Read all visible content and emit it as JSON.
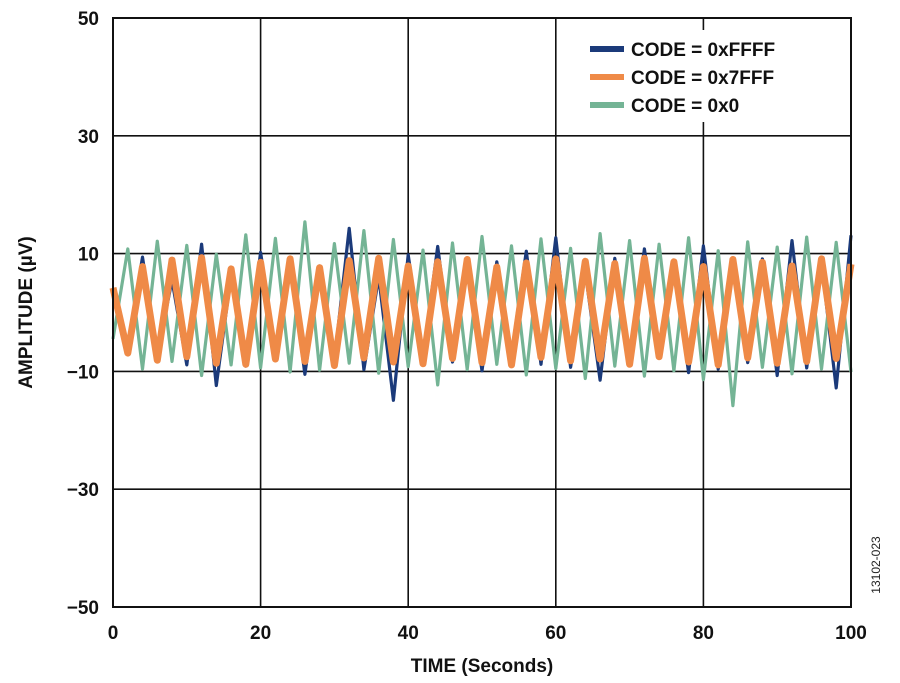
{
  "chart_data": {
    "type": "line",
    "title": "",
    "xlabel": "TIME (Seconds)",
    "ylabel": "AMPLITUDE (µV)",
    "xlim": [
      0,
      100
    ],
    "ylim": [
      -50,
      50
    ],
    "x_ticks": [
      "0",
      "20",
      "40",
      "60",
      "80",
      "100"
    ],
    "y_ticks": [
      "50",
      "30",
      "10",
      "−10",
      "−30",
      "−50"
    ],
    "grid": true,
    "legend_position": "top-right",
    "figure_id": "13102-023",
    "series": [
      {
        "name": "CODE = 0xFFFF",
        "color": "#1b3a7a",
        "x": [
          0,
          2,
          4,
          6,
          8,
          10,
          12,
          14,
          16,
          18,
          20,
          22,
          24,
          26,
          28,
          30,
          32,
          34,
          36,
          38,
          40,
          42,
          44,
          46,
          48,
          50,
          52,
          54,
          56,
          58,
          60,
          62,
          64,
          66,
          68,
          70,
          72,
          74,
          76,
          78,
          80,
          82,
          84,
          86,
          88,
          90,
          92,
          94,
          96,
          98,
          100
        ],
        "values": [
          3.1,
          -5.8,
          9.4,
          -7.2,
          5.5,
          -8.9,
          11.6,
          -12.4,
          6.3,
          -9.1,
          10.2,
          -6.8,
          8.7,
          -10.5,
          7.9,
          -8.2,
          14.3,
          -9.7,
          6.1,
          -14.9,
          9.8,
          -7.6,
          11.2,
          -8.4,
          7.3,
          -9.9,
          8.6,
          -7.1,
          10.4,
          -8.8,
          12.7,
          -9.3,
          6.9,
          -11.5,
          9.2,
          -8.1,
          10.8,
          -7.4,
          8.3,
          -10.2,
          11.3,
          -9.6,
          7.7,
          -8.5,
          9.1,
          -10.7,
          12.2,
          -9.4,
          8.4,
          -12.8,
          13.1
        ]
      },
      {
        "name": "CODE = 0x7FFF",
        "color": "#ef8a47",
        "x": [
          0,
          2,
          4,
          6,
          8,
          10,
          12,
          14,
          16,
          18,
          20,
          22,
          24,
          26,
          28,
          30,
          32,
          34,
          36,
          38,
          40,
          42,
          44,
          46,
          48,
          50,
          52,
          54,
          56,
          58,
          60,
          62,
          64,
          66,
          68,
          70,
          72,
          74,
          76,
          78,
          80,
          82,
          84,
          86,
          88,
          90,
          92,
          94,
          96,
          98,
          100
        ],
        "values": [
          4.2,
          -6.9,
          7.8,
          -8.1,
          8.9,
          -7.5,
          9.3,
          -8.6,
          7.4,
          -8.8,
          8.5,
          -7.9,
          9.1,
          -8.3,
          7.6,
          -9.0,
          8.8,
          -7.7,
          9.2,
          -8.4,
          7.9,
          -8.7,
          8.6,
          -7.8,
          9.0,
          -8.5,
          7.7,
          -8.9,
          8.4,
          -7.6,
          9.1,
          -8.2,
          8.7,
          -7.9,
          8.3,
          -8.8,
          9.2,
          -7.5,
          8.6,
          -8.4,
          7.8,
          -8.9,
          9.0,
          -7.7,
          8.5,
          -8.6,
          7.9,
          -8.3,
          9.1,
          -7.8,
          8.2
        ]
      },
      {
        "name": "CODE = 0x0",
        "color": "#74b495",
        "x": [
          0,
          2,
          4,
          6,
          8,
          10,
          12,
          14,
          16,
          18,
          20,
          22,
          24,
          26,
          28,
          30,
          32,
          34,
          36,
          38,
          40,
          42,
          44,
          46,
          48,
          50,
          52,
          54,
          56,
          58,
          60,
          62,
          64,
          66,
          68,
          70,
          72,
          74,
          76,
          78,
          80,
          82,
          84,
          86,
          88,
          90,
          92,
          94,
          96,
          98,
          100
        ],
        "values": [
          -4.5,
          10.8,
          -9.6,
          12.1,
          -8.3,
          11.4,
          -10.7,
          9.9,
          -8.9,
          13.2,
          -9.4,
          12.6,
          -10.1,
          15.4,
          -9.8,
          11.7,
          -8.6,
          13.9,
          -10.3,
          12.4,
          -9.2,
          10.6,
          -12.3,
          11.8,
          -9.7,
          12.9,
          -8.8,
          11.3,
          -10.6,
          12.5,
          -9.5,
          10.9,
          -11.2,
          13.4,
          -9.1,
          12.2,
          -10.8,
          11.6,
          -9.9,
          12.7,
          -11.4,
          10.5,
          -15.8,
          12.0,
          -9.3,
          11.1,
          -10.4,
          12.8,
          -9.6,
          11.9,
          -10.1
        ]
      }
    ]
  }
}
